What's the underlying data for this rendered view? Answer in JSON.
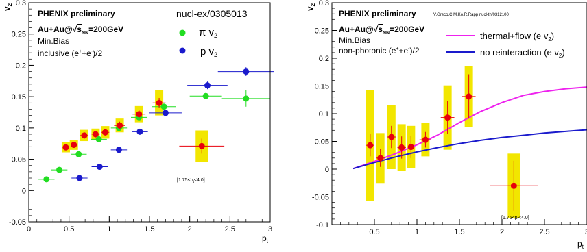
{
  "chart_data": [
    {
      "type": "scatter",
      "header": "PHENIX preliminary",
      "reference": "nucl-ex/0305013",
      "system_lines": [
        "Au+Au@",
        "=200GeV"
      ],
      "system_sqrt": "s",
      "system_sub": "NN",
      "centrality": "Min.Bias",
      "selection_prefix": "inclusive (e",
      "selection_plus": "+",
      "selection_mid": "+e",
      "selection_minus": "-",
      "selection_suffix": ")/2",
      "xlabel": "p",
      "xlabel_sub": "t",
      "ylabel": "v",
      "ylabel_sub": "2",
      "xlim": [
        0,
        3
      ],
      "ylim": [
        -0.05,
        0.3
      ],
      "xticks": [
        "0",
        "0.5",
        "1",
        "1.5",
        "2",
        "2.5",
        "3"
      ],
      "yticks": [
        "-0.05",
        "0",
        "0.05",
        "0.1",
        "0.15",
        "0.2",
        "0.25",
        "0.3"
      ],
      "range_note": "[1.75<p",
      "range_note_sub": "t",
      "range_note_end": "<4.0]",
      "legend_pi": "π v",
      "legend_p": "p v",
      "legend_sub": "2",
      "colors": {
        "header": "#e8000b",
        "pion": "#22dd22",
        "proton": "#1a1acc",
        "electron": "#e8000b",
        "syst": "#f2e600"
      },
      "series": [
        {
          "name": "π v2",
          "points": [
            {
              "x": 0.22,
              "y": 0.018,
              "xerr": 0.1,
              "yerr": 0.002
            },
            {
              "x": 0.38,
              "y": 0.033,
              "xerr": 0.1,
              "yerr": 0.002
            },
            {
              "x": 0.62,
              "y": 0.058,
              "xerr": 0.1,
              "yerr": 0.003
            },
            {
              "x": 0.87,
              "y": 0.082,
              "xerr": 0.1,
              "yerr": 0.003
            },
            {
              "x": 1.12,
              "y": 0.1,
              "xerr": 0.1,
              "yerr": 0.003
            },
            {
              "x": 1.37,
              "y": 0.117,
              "xerr": 0.1,
              "yerr": 0.004
            },
            {
              "x": 1.68,
              "y": 0.134,
              "xerr": 0.15,
              "yerr": 0.004
            },
            {
              "x": 2.2,
              "y": 0.151,
              "xerr": 0.2,
              "yerr": 0.005
            },
            {
              "x": 2.7,
              "y": 0.147,
              "xerr": 0.3,
              "yerr": 0.013
            }
          ]
        },
        {
          "name": "p v2",
          "points": [
            {
              "x": 0.63,
              "y": 0.02,
              "xerr": 0.1,
              "yerr": 0.003
            },
            {
              "x": 0.88,
              "y": 0.038,
              "xerr": 0.1,
              "yerr": 0.003
            },
            {
              "x": 1.12,
              "y": 0.065,
              "xerr": 0.1,
              "yerr": 0.004
            },
            {
              "x": 1.38,
              "y": 0.094,
              "xerr": 0.1,
              "yerr": 0.004
            },
            {
              "x": 1.7,
              "y": 0.124,
              "xerr": 0.2,
              "yerr": 0.005
            },
            {
              "x": 2.22,
              "y": 0.168,
              "xerr": 0.25,
              "yerr": 0.006
            },
            {
              "x": 2.7,
              "y": 0.19,
              "xerr": 0.35,
              "yerr": 0.007
            }
          ]
        },
        {
          "name": "inclusive (e++e-)/2",
          "points": [
            {
              "x": 0.46,
              "y": 0.069,
              "xerr": 0.04,
              "yerr": 0.004,
              "syst": 0.008
            },
            {
              "x": 0.56,
              "y": 0.073,
              "xerr": 0.04,
              "yerr": 0.004,
              "syst": 0.008
            },
            {
              "x": 0.69,
              "y": 0.088,
              "xerr": 0.05,
              "yerr": 0.005,
              "syst": 0.009
            },
            {
              "x": 0.83,
              "y": 0.09,
              "xerr": 0.05,
              "yerr": 0.005,
              "syst": 0.009
            },
            {
              "x": 0.95,
              "y": 0.093,
              "xerr": 0.05,
              "yerr": 0.005,
              "syst": 0.01
            },
            {
              "x": 1.13,
              "y": 0.104,
              "xerr": 0.07,
              "yerr": 0.006,
              "syst": 0.011
            },
            {
              "x": 1.37,
              "y": 0.122,
              "xerr": 0.08,
              "yerr": 0.007,
              "syst": 0.013
            },
            {
              "x": 1.62,
              "y": 0.14,
              "xerr": 0.08,
              "yerr": 0.008,
              "syst": 0.02
            },
            {
              "x": 2.15,
              "y": 0.071,
              "xerr": 0.28,
              "yerr": 0.012,
              "syst": 0.025
            }
          ]
        }
      ]
    },
    {
      "type": "scatter",
      "header": "PHENIX preliminary",
      "reference": "V.Greco,C.M.Ko,R.Rapp nucl-th/0312100",
      "system_lines": [
        "Au+Au@",
        "=200GeV"
      ],
      "system_sqrt": "s",
      "system_sub": "NN",
      "centrality": "Min.Bias",
      "selection_prefix": "non-photonic (e",
      "selection_plus": "+",
      "selection_mid": "+e",
      "selection_minus": "-",
      "selection_suffix": ")/2",
      "xlabel": "p",
      "xlabel_sub": "t",
      "ylabel": "v",
      "ylabel_sub": "2",
      "xlim": [
        0,
        3
      ],
      "ylim": [
        -0.1,
        0.3
      ],
      "xticks": [
        "0.5",
        "1",
        "1.5",
        "2",
        "2.5",
        "3"
      ],
      "yticks": [
        "-0.1",
        "-0.05",
        "0",
        "0.05",
        "0.1",
        "0.15",
        "0.2",
        "0.25",
        "0.3"
      ],
      "range_note": "[1.75<p",
      "range_note_sub": "t",
      "range_note_end": "<4.0]",
      "legend_thermal": "thermal+flow (e v",
      "legend_noreint": "no reinteraction (e v",
      "legend_sub": "2",
      "legend_close": ")",
      "colors": {
        "header": "#e8000b",
        "thermal": "#ee22ee",
        "noreint": "#1a1acc",
        "electron": "#e8000b",
        "syst": "#f2e600"
      },
      "curves": [
        {
          "name": "thermal+flow (e v2)",
          "x": [
            0.25,
            0.5,
            0.75,
            1.0,
            1.25,
            1.5,
            1.75,
            2.0,
            2.25,
            2.5,
            2.75,
            3.0
          ],
          "y": [
            0.001,
            0.014,
            0.028,
            0.044,
            0.062,
            0.084,
            0.104,
            0.12,
            0.133,
            0.14,
            0.145,
            0.148
          ]
        },
        {
          "name": "no reinteraction (e v2)",
          "x": [
            0.25,
            0.5,
            0.75,
            1.0,
            1.25,
            1.5,
            1.75,
            2.0,
            2.25,
            2.5,
            2.75,
            3.0
          ],
          "y": [
            0.001,
            0.012,
            0.022,
            0.031,
            0.039,
            0.046,
            0.052,
            0.057,
            0.061,
            0.065,
            0.068,
            0.071
          ]
        }
      ],
      "series": [
        {
          "name": "non-photonic (e++e-)/2",
          "points": [
            {
              "x": 0.45,
              "y": 0.043,
              "xerr": 0.05,
              "yerr": 0.02,
              "syst": 0.1
            },
            {
              "x": 0.57,
              "y": 0.02,
              "xerr": 0.05,
              "yerr": 0.016,
              "syst": 0.045
            },
            {
              "x": 0.7,
              "y": 0.058,
              "xerr": 0.05,
              "yerr": 0.02,
              "syst": 0.058
            },
            {
              "x": 0.82,
              "y": 0.039,
              "xerr": 0.05,
              "yerr": 0.02,
              "syst": 0.042
            },
            {
              "x": 0.93,
              "y": 0.04,
              "xerr": 0.05,
              "yerr": 0.02,
              "syst": 0.038
            },
            {
              "x": 1.1,
              "y": 0.053,
              "xerr": 0.07,
              "yerr": 0.014,
              "syst": 0.03
            },
            {
              "x": 1.36,
              "y": 0.093,
              "xerr": 0.08,
              "yerr": 0.03,
              "syst": 0.058
            },
            {
              "x": 1.61,
              "y": 0.131,
              "xerr": 0.08,
              "yerr": 0.04,
              "syst": 0.055
            },
            {
              "x": 2.14,
              "y": -0.03,
              "xerr": 0.28,
              "yerr": 0.045,
              "syst": 0.058
            }
          ]
        }
      ]
    }
  ]
}
